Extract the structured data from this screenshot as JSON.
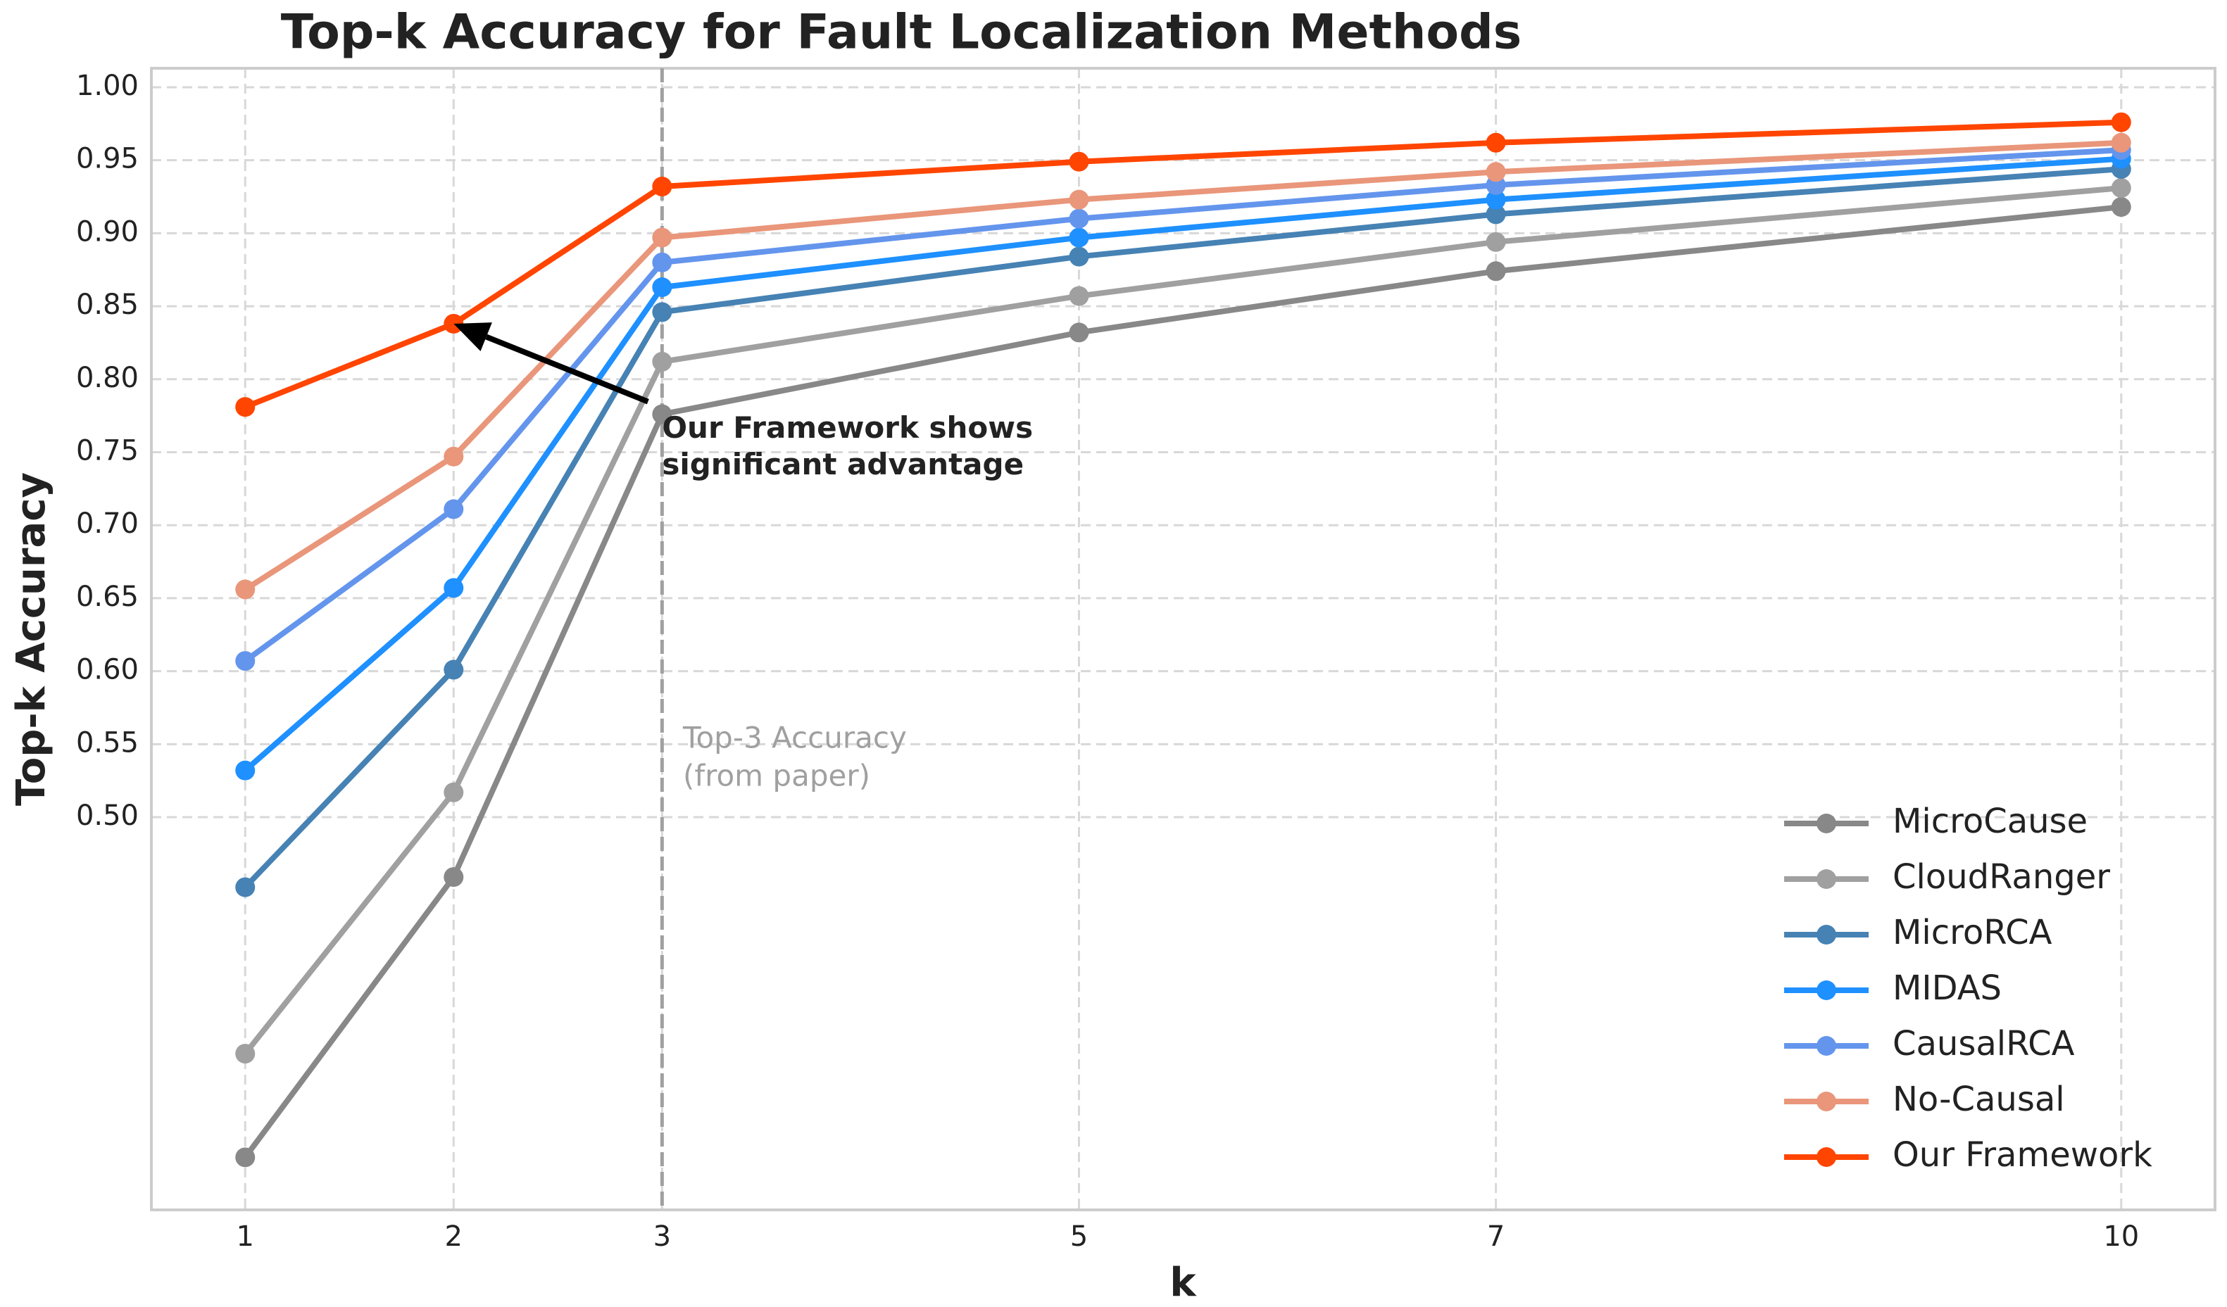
{
  "chart_data": {
    "type": "line",
    "title": "Top-k Accuracy for Fault Localization Methods",
    "xlabel": "k",
    "ylabel": "Top-k Accuracy",
    "x": [
      1,
      2,
      3,
      5,
      7,
      10
    ],
    "series": [
      {
        "name": "MicroCause",
        "color": "#888888",
        "values": [
          0.267,
          0.459,
          0.776,
          0.832,
          0.874,
          0.918
        ]
      },
      {
        "name": "CloudRanger",
        "color": "#a0a0a0",
        "values": [
          0.338,
          0.517,
          0.812,
          0.857,
          0.894,
          0.931
        ]
      },
      {
        "name": "MicroRCA",
        "color": "#4682b4",
        "values": [
          0.452,
          0.601,
          0.846,
          0.884,
          0.913,
          0.944
        ]
      },
      {
        "name": "MIDAS",
        "color": "#1e90ff",
        "values": [
          0.532,
          0.657,
          0.863,
          0.897,
          0.923,
          0.951
        ]
      },
      {
        "name": "CausalRCA",
        "color": "#6495ed",
        "values": [
          0.607,
          0.711,
          0.88,
          0.91,
          0.933,
          0.957
        ]
      },
      {
        "name": "No-Causal",
        "color": "#e9967a",
        "values": [
          0.656,
          0.747,
          0.897,
          0.923,
          0.942,
          0.962
        ]
      },
      {
        "name": "Our Framework",
        "color": "#ff4500",
        "values": [
          0.781,
          0.838,
          0.932,
          0.949,
          0.962,
          0.976
        ]
      }
    ],
    "xlim": [
      0.55,
      10.45
    ],
    "ylim": [
      0.231,
      1.013
    ],
    "xticks": [
      1,
      2,
      3,
      5,
      7,
      10
    ],
    "yticks": [
      {
        "value": 0.5,
        "label": "0.50"
      },
      {
        "value": 0.55,
        "label": "0.55"
      },
      {
        "value": 0.6,
        "label": "0.60"
      },
      {
        "value": 0.65,
        "label": "0.65"
      },
      {
        "value": 0.7,
        "label": "0.70"
      },
      {
        "value": 0.75,
        "label": "0.75"
      },
      {
        "value": 0.8,
        "label": "0.80"
      },
      {
        "value": 0.85,
        "label": "0.85"
      },
      {
        "value": 0.9,
        "label": "0.90"
      },
      {
        "value": 0.95,
        "label": "0.95"
      },
      {
        "value": 1.0,
        "label": "1.00"
      }
    ],
    "grid": true,
    "legend": "lower right",
    "vline": {
      "x": 3,
      "color": "#a0a0a0",
      "text": [
        "Top-3 Accuracy",
        "(from paper)"
      ],
      "text_xy": [
        3.1,
        0.553
      ]
    },
    "annotation": {
      "text": [
        "Our Framework shows",
        "significant advantage"
      ],
      "xy": [
        2,
        0.838
      ],
      "xytext": [
        3,
        0.775
      ]
    }
  }
}
